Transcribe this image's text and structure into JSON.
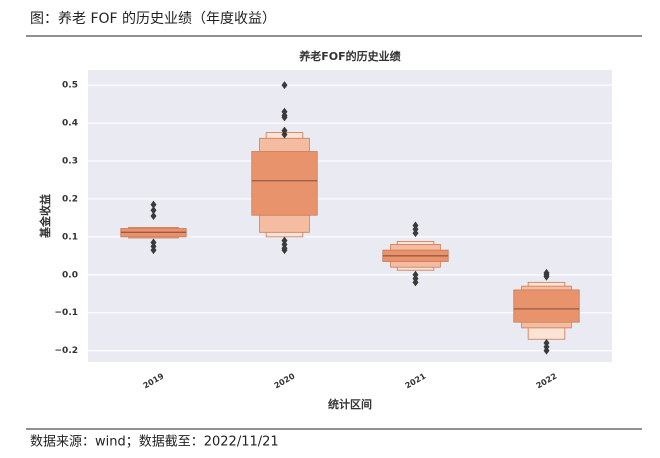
{
  "header": "图：养老 FOF 的历史业绩（年度收益）",
  "footer": "数据来源：wind；数据截至：2022/11/21",
  "chart_data": {
    "type": "boxen",
    "title": "养老FOF的历史业绩",
    "x_label": "统计区间",
    "y_label": "基金收益",
    "categories": [
      "2019",
      "2020",
      "2021",
      "2022"
    ],
    "level_colors": [
      "#e9936c",
      "#f4bda2",
      "#fbe3d6"
    ],
    "median_color": "#9a5a44",
    "outlier_color": "#3a3a3a",
    "boxes": [
      {
        "levels": [
          [
            0.1,
            0.122
          ],
          [
            0.097,
            0.125
          ]
        ],
        "median": 0.112,
        "outliers": [
          0.185,
          0.17,
          0.155,
          0.085,
          0.075,
          0.065
        ]
      },
      {
        "levels": [
          [
            0.157,
            0.325
          ],
          [
            0.112,
            0.36
          ],
          [
            0.1,
            0.375
          ]
        ],
        "median": 0.248,
        "outliers": [
          0.5,
          0.43,
          0.42,
          0.415,
          0.38,
          0.37,
          0.09,
          0.08,
          0.07,
          0.065
        ]
      },
      {
        "levels": [
          [
            0.035,
            0.065
          ],
          [
            0.02,
            0.08
          ],
          [
            0.012,
            0.088
          ]
        ],
        "median": 0.05,
        "outliers": [
          0.13,
          0.12,
          0.11,
          0.0,
          -0.01,
          -0.02
        ]
      },
      {
        "levels": [
          [
            -0.125,
            -0.04
          ],
          [
            -0.14,
            -0.03
          ],
          [
            -0.17,
            -0.02
          ]
        ],
        "median": -0.09,
        "outliers": [
          0.005,
          0.0,
          -0.005,
          -0.18,
          -0.19,
          -0.2
        ]
      }
    ],
    "ylim": [
      -0.23,
      0.54
    ],
    "yticks": [
      {
        "value": -0.2,
        "label": "−0.2"
      },
      {
        "value": -0.1,
        "label": "−0.1"
      },
      {
        "value": 0,
        "label": "0.0"
      },
      0.1,
      0.2,
      0.3,
      0.4,
      0.5
    ],
    "grid": true,
    "background": "#eaeaf2"
  }
}
